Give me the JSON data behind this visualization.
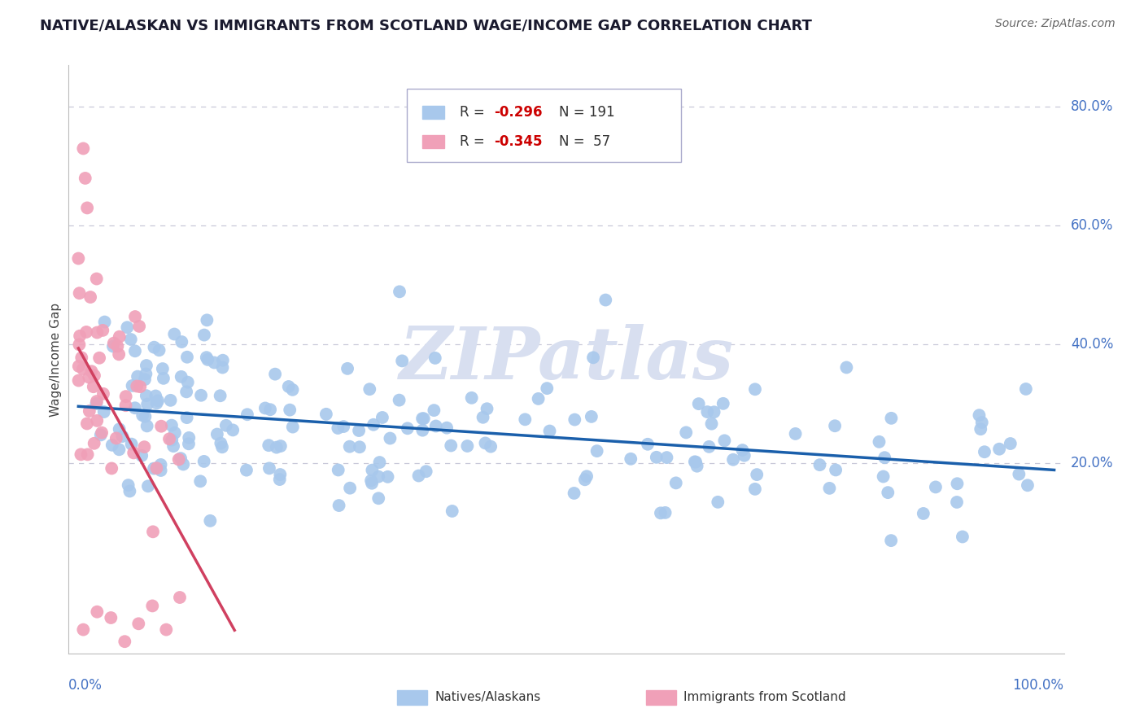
{
  "title": "NATIVE/ALASKAN VS IMMIGRANTS FROM SCOTLAND WAGE/INCOME GAP CORRELATION CHART",
  "source": "Source: ZipAtlas.com",
  "ylabel": "Wage/Income Gap",
  "blue_color": "#A8C8EC",
  "pink_color": "#F0A0B8",
  "trend_blue_color": "#1A5FAB",
  "trend_pink_color": "#D04060",
  "watermark_color": "#D8DFF0",
  "grid_color": "#C8C8D8",
  "right_label_color": "#4472C4",
  "title_color": "#1A1A2E",
  "source_color": "#666666",
  "ylabel_color": "#444444",
  "legend_r_color": "#CC0000",
  "legend_n_color": "#333333",
  "ytick_vals": [
    0.2,
    0.4,
    0.6,
    0.8
  ],
  "ytick_labels": [
    "20.0%",
    "40.0%",
    "60.0%",
    "80.0%"
  ]
}
